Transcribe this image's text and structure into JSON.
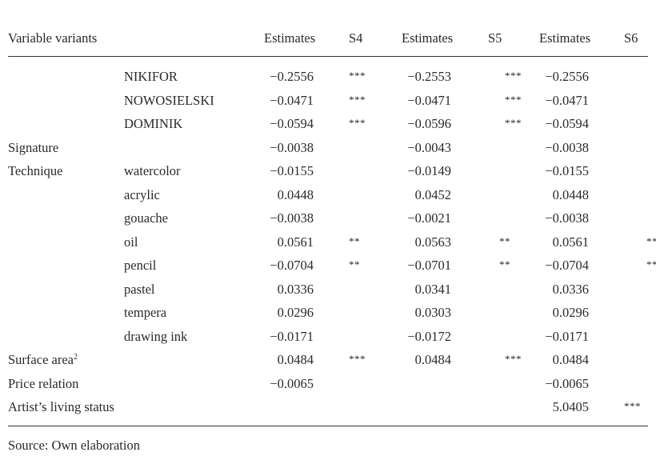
{
  "header": {
    "variable": "Variable variants",
    "est4": "Estimates",
    "s4": "S4",
    "est5": "Estimates",
    "s5": "S5",
    "est6": "Estimates",
    "s6": "S6"
  },
  "rows": [
    {
      "var": "",
      "sub": "NIKIFOR",
      "e4": "−0.2556",
      "s4": "***",
      "e5": "−0.2553",
      "s5": "***",
      "e6": "−0.2556",
      "s6": "***"
    },
    {
      "var": "",
      "sub": "NOWOSIELSKI",
      "e4": "−0.0471",
      "s4": "***",
      "e5": "−0.0471",
      "s5": "***",
      "e6": "−0.0471",
      "s6": "***"
    },
    {
      "var": "",
      "sub": "DOMINIK",
      "e4": "−0.0594",
      "s4": "***",
      "e5": "−0.0596",
      "s5": "***",
      "e6": "−0.0594",
      "s6": "***"
    },
    {
      "var": "Signature",
      "sub": "",
      "e4": "−0.0038",
      "s4": "",
      "e5": "−0.0043",
      "s5": "",
      "e6": "−0.0038",
      "s6": ""
    },
    {
      "var": "Technique",
      "sub": "watercolor",
      "e4": "−0.0155",
      "s4": "",
      "e5": "−0.0149",
      "s5": "",
      "e6": "−0.0155",
      "s6": ""
    },
    {
      "var": "",
      "sub": "acrylic",
      "e4": "0.0448",
      "s4": "",
      "e5": "0.0452",
      "s5": "",
      "e6": "0.0448",
      "s6": ""
    },
    {
      "var": "",
      "sub": "gouache",
      "e4": "−0.0038",
      "s4": "",
      "e5": "−0.0021",
      "s5": "",
      "e6": "−0.0038",
      "s6": ""
    },
    {
      "var": "",
      "sub": "oil",
      "e4": "0.0561",
      "s4": "**",
      "e5": "0.0563",
      "s5": "**",
      "e6": "0.0561",
      "s6": "**"
    },
    {
      "var": "",
      "sub": "pencil",
      "e4": "−0.0704",
      "s4": "**",
      "e5": "−0.0701",
      "s5": "**",
      "e6": "−0.0704",
      "s6": "**"
    },
    {
      "var": "",
      "sub": "pastel",
      "e4": "0.0336",
      "s4": "",
      "e5": "0.0341",
      "s5": "",
      "e6": "0.0336",
      "s6": ""
    },
    {
      "var": "",
      "sub": "tempera",
      "e4": "0.0296",
      "s4": "",
      "e5": "0.0303",
      "s5": "",
      "e6": "0.0296",
      "s6": ""
    },
    {
      "var": "",
      "sub": "drawing ink",
      "e4": "−0.0171",
      "s4": "",
      "e5": "−0.0172",
      "s5": "",
      "e6": "−0.0171",
      "s6": ""
    },
    {
      "var": "Surface area",
      "var_sup": "2",
      "sub": "",
      "e4": "0.0484",
      "s4": "***",
      "e5": "0.0484",
      "s5": "***",
      "e6": "0.0484",
      "s6": "***"
    },
    {
      "var": "Price relation",
      "sub": "",
      "e4": "−0.0065",
      "s4": "",
      "e5": "",
      "s5": "",
      "e6": "−0.0065",
      "s6": ""
    },
    {
      "var": "Artist’s living status",
      "sub": "",
      "e4": "",
      "s4": "",
      "e5": "",
      "s5": "",
      "e6": "5.0405",
      "s6": "***"
    }
  ],
  "footer": {
    "source": "Source: Own elaboration"
  }
}
